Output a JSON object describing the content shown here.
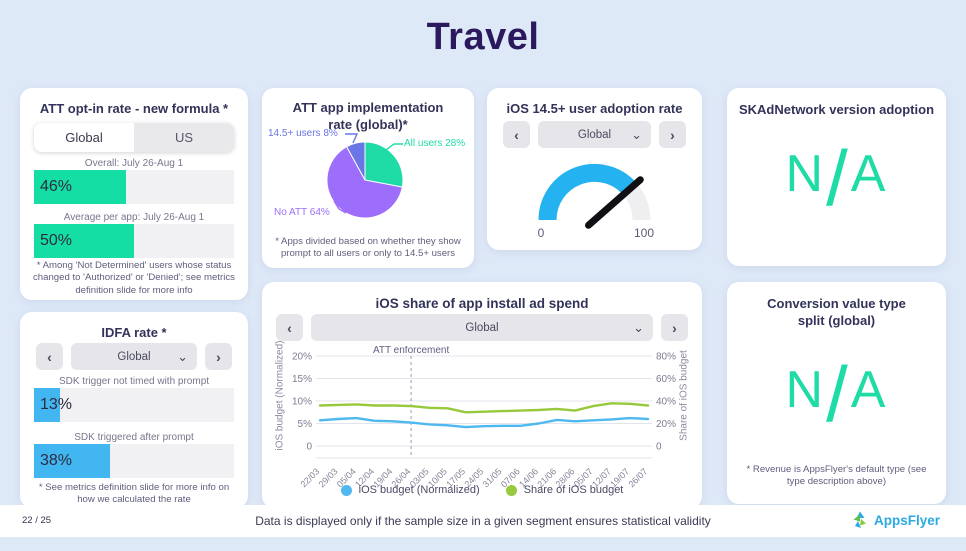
{
  "page": {
    "title": "Travel"
  },
  "icons": {
    "prev": "‹",
    "next": "›",
    "chevron_down": "⌄"
  },
  "cards": {
    "att_opt_in": {
      "tabs": [
        "Global",
        "US"
      ],
      "active_tab": "Global",
      "footnote": "* Among 'Not Determined' users whose status changed to 'Authorized' or 'Denied'; see metrics definition slide for more info"
    },
    "att_implementation": {
      "footnote": "* Apps divided based on whether they show prompt to all users or only to 14.5+ users"
    },
    "ios_adoption": {
      "title": "iOS 14.5+ user adoption rate",
      "selector": {
        "value": "Global"
      }
    },
    "skad": {
      "title": "SKAdNetwork version adoption",
      "value": "N/A"
    },
    "idfa": {
      "title": "IDFA rate *",
      "selector": {
        "value": "Global"
      },
      "footnote": "* See metrics definition slide for more info on how we calculated the rate"
    },
    "ios_share": {
      "selector": {
        "value": "Global"
      }
    },
    "conversion_split": {
      "title": "Conversion value type split (global)",
      "value": "N/A",
      "footnote": "* Revenue is AppsFlyer's default type (see type description above)"
    }
  },
  "footer": {
    "page_number": "22 / 25",
    "note": "Data is displayed only if the sample size in a given segment ensures statistical validity",
    "brand": "AppsFlyer"
  },
  "chart_data": [
    {
      "id": "att-opt-in-bars",
      "type": "bar",
      "title": "ATT opt-in rate - new formula *",
      "categories": [
        "Overall: July 26-Aug 1",
        "Average per app: July 26-Aug 1"
      ],
      "values": [
        46,
        50
      ],
      "value_labels": [
        "46%",
        "50%"
      ],
      "xlim": [
        0,
        100
      ],
      "color": "#15DEA5"
    },
    {
      "id": "att-implementation-pie",
      "type": "pie",
      "title": "ATT app implementation rate (global)*",
      "labels": [
        "All users 28%",
        "No ATT 64%",
        "14.5+ users 8%"
      ],
      "values": [
        28,
        64,
        8
      ],
      "colors": [
        "#1FDCA6",
        "#9D6DFB",
        "#6A75E6"
      ]
    },
    {
      "id": "ios-adoption-gauge",
      "type": "gauge",
      "title": "iOS 14.5+ user adoption rate",
      "min": 0,
      "max": 100,
      "value": 77,
      "min_label": "0",
      "max_label": "100",
      "color": "#24B3F0",
      "track_color": "#EFEFF2"
    },
    {
      "id": "idfa-bars",
      "type": "bar",
      "title": "IDFA rate *",
      "categories": [
        "SDK trigger not timed with prompt",
        "SDK triggered after prompt"
      ],
      "values": [
        13,
        38
      ],
      "value_labels": [
        "13%",
        "38%"
      ],
      "xlim": [
        0,
        100
      ],
      "color": "#41B6F0"
    },
    {
      "id": "ios-share-line",
      "type": "line",
      "title": "iOS share of app install ad spend",
      "x": [
        "22/03",
        "29/03",
        "05/04",
        "12/04",
        "19/04",
        "26/04",
        "03/05",
        "10/05",
        "17/05",
        "24/05",
        "31/05",
        "07/06",
        "14/06",
        "21/06",
        "28/06",
        "05/07",
        "12/07",
        "19/07",
        "26/07"
      ],
      "series": [
        {
          "name": "iOS budget (Normalized)",
          "axis": "left",
          "color": "#4FB8EE",
          "values": [
            5.7,
            6.0,
            6.2,
            5.6,
            5.5,
            5.2,
            4.8,
            4.6,
            4.2,
            4.4,
            4.5,
            4.5,
            5.0,
            5.8,
            5.5,
            5.7,
            5.9,
            6.2,
            6.0
          ]
        },
        {
          "name": "Share of iOS budget",
          "axis": "right",
          "color": "#97C93D",
          "values": [
            36,
            36.5,
            37,
            36,
            36,
            35.5,
            34,
            33.5,
            30,
            30.5,
            31,
            31.5,
            32,
            33,
            31.5,
            35.5,
            38,
            37.5,
            36
          ]
        }
      ],
      "left_axis": {
        "title": "iOS budget (Normalized)",
        "ticks": [
          "20%",
          "15%",
          "10%",
          "5%",
          "0"
        ],
        "max": 20
      },
      "right_axis": {
        "title": "Share of iOS budget",
        "ticks": [
          "80%",
          "60%",
          "40%",
          "20%",
          "0"
        ],
        "max": 80
      },
      "annotation": {
        "label": "ATT enforcement",
        "x": "26/04"
      },
      "legend": [
        {
          "label": "iOS budget (Normalized)",
          "color": "#4FB8EE"
        },
        {
          "label": "Share of iOS budget",
          "color": "#97C93D"
        }
      ],
      "grid": true,
      "legend_position": "bottom"
    }
  ]
}
